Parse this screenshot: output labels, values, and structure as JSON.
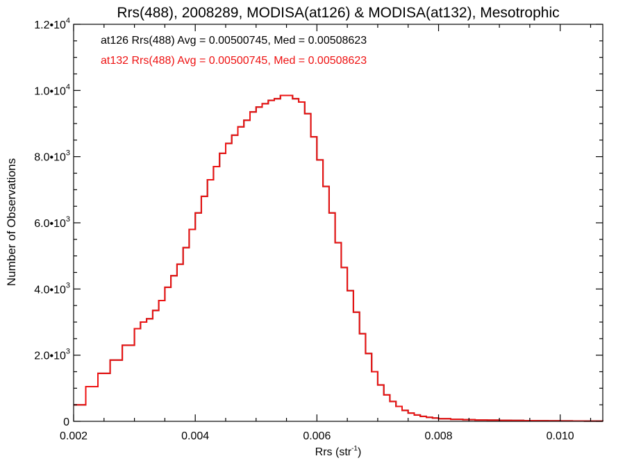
{
  "chart_data": {
    "type": "line",
    "title": "Rrs(488), 2008289, MODISA(at126) & MODISA(at132), Mesotrophic",
    "xlabel_main": "Rrs (str",
    "xlabel_exp": "-1",
    "xlabel_end": ")",
    "ylabel": "Number of Observations",
    "xlim": [
      0.002,
      0.0107
    ],
    "ylim": [
      0,
      12000
    ],
    "x_ticks": [
      {
        "value": 0.002,
        "label": "0.002"
      },
      {
        "value": 0.004,
        "label": "0.004"
      },
      {
        "value": 0.006,
        "label": "0.006"
      },
      {
        "value": 0.008,
        "label": "0.008"
      },
      {
        "value": 0.01,
        "label": "0.010"
      }
    ],
    "y_ticks": [
      {
        "value": 0,
        "mant": "0",
        "exp": ""
      },
      {
        "value": 2000,
        "mant": "2.0•10",
        "exp": "3"
      },
      {
        "value": 4000,
        "mant": "4.0•10",
        "exp": "3"
      },
      {
        "value": 6000,
        "mant": "6.0•10",
        "exp": "3"
      },
      {
        "value": 8000,
        "mant": "8.0•10",
        "exp": "3"
      },
      {
        "value": 10000,
        "mant": "1.0•10",
        "exp": "4"
      },
      {
        "value": 12000,
        "mant": "1.2•10",
        "exp": "4"
      }
    ],
    "annotations": [
      {
        "text": "at126 Rrs(488) Avg = 0.00500745, Med = 0.00508623",
        "color": "#000000"
      },
      {
        "text": "at132 Rrs(488) Avg = 0.00500745, Med = 0.00508623",
        "color": "#ee1111"
      }
    ],
    "series_colors": [
      "#000000",
      "#ee1111"
    ],
    "series": [
      {
        "x": [
          0.002,
          0.0022,
          0.0024,
          0.0026,
          0.0028,
          0.003,
          0.0031,
          0.0032,
          0.0033,
          0.0034,
          0.0035,
          0.0036,
          0.0037,
          0.0038,
          0.0039,
          0.004,
          0.0041,
          0.0042,
          0.0043,
          0.0044,
          0.0045,
          0.0046,
          0.0047,
          0.0048,
          0.0049,
          0.005,
          0.0051,
          0.0052,
          0.0053,
          0.0054,
          0.0055,
          0.0056,
          0.0057,
          0.0058,
          0.0059,
          0.006,
          0.0061,
          0.0062,
          0.0063,
          0.0064,
          0.0065,
          0.0066,
          0.0067,
          0.0068,
          0.0069,
          0.007,
          0.0071,
          0.0072,
          0.0073,
          0.0074,
          0.0075,
          0.0076,
          0.0077,
          0.0078,
          0.0079,
          0.008,
          0.0082,
          0.0084,
          0.0086,
          0.0088,
          0.009,
          0.0092,
          0.0094,
          0.0096,
          0.0098,
          0.01,
          0.0102,
          0.0104,
          0.0107
        ],
        "values": [
          500,
          1050,
          1450,
          1850,
          2300,
          2800,
          3000,
          3100,
          3350,
          3650,
          4050,
          4400,
          4750,
          5250,
          5800,
          6300,
          6800,
          7300,
          7700,
          8100,
          8400,
          8650,
          8900,
          9100,
          9350,
          9500,
          9600,
          9700,
          9750,
          9850,
          9850,
          9750,
          9650,
          9300,
          8600,
          7900,
          7100,
          6300,
          5400,
          4650,
          3950,
          3300,
          2650,
          2050,
          1500,
          1100,
          800,
          600,
          450,
          330,
          250,
          190,
          150,
          120,
          100,
          80,
          60,
          50,
          40,
          35,
          30,
          25,
          20,
          18,
          15,
          12,
          10,
          8,
          6
        ]
      },
      {
        "x": [
          0.002,
          0.0022,
          0.0024,
          0.0026,
          0.0028,
          0.003,
          0.0031,
          0.0032,
          0.0033,
          0.0034,
          0.0035,
          0.0036,
          0.0037,
          0.0038,
          0.0039,
          0.004,
          0.0041,
          0.0042,
          0.0043,
          0.0044,
          0.0045,
          0.0046,
          0.0047,
          0.0048,
          0.0049,
          0.005,
          0.0051,
          0.0052,
          0.0053,
          0.0054,
          0.0055,
          0.0056,
          0.0057,
          0.0058,
          0.0059,
          0.006,
          0.0061,
          0.0062,
          0.0063,
          0.0064,
          0.0065,
          0.0066,
          0.0067,
          0.0068,
          0.0069,
          0.007,
          0.0071,
          0.0072,
          0.0073,
          0.0074,
          0.0075,
          0.0076,
          0.0077,
          0.0078,
          0.0079,
          0.008,
          0.0082,
          0.0084,
          0.0086,
          0.0088,
          0.009,
          0.0092,
          0.0094,
          0.0096,
          0.0098,
          0.01,
          0.0102,
          0.0104,
          0.0107
        ],
        "values": [
          500,
          1050,
          1450,
          1850,
          2300,
          2800,
          3000,
          3100,
          3350,
          3650,
          4050,
          4400,
          4750,
          5250,
          5800,
          6300,
          6800,
          7300,
          7700,
          8100,
          8400,
          8650,
          8900,
          9100,
          9350,
          9500,
          9600,
          9700,
          9750,
          9850,
          9850,
          9750,
          9650,
          9300,
          8600,
          7900,
          7100,
          6300,
          5400,
          4650,
          3950,
          3300,
          2650,
          2050,
          1500,
          1100,
          800,
          600,
          450,
          330,
          250,
          190,
          150,
          120,
          100,
          80,
          60,
          50,
          40,
          35,
          30,
          25,
          20,
          18,
          15,
          12,
          10,
          8,
          6
        ]
      }
    ],
    "grid": false
  }
}
